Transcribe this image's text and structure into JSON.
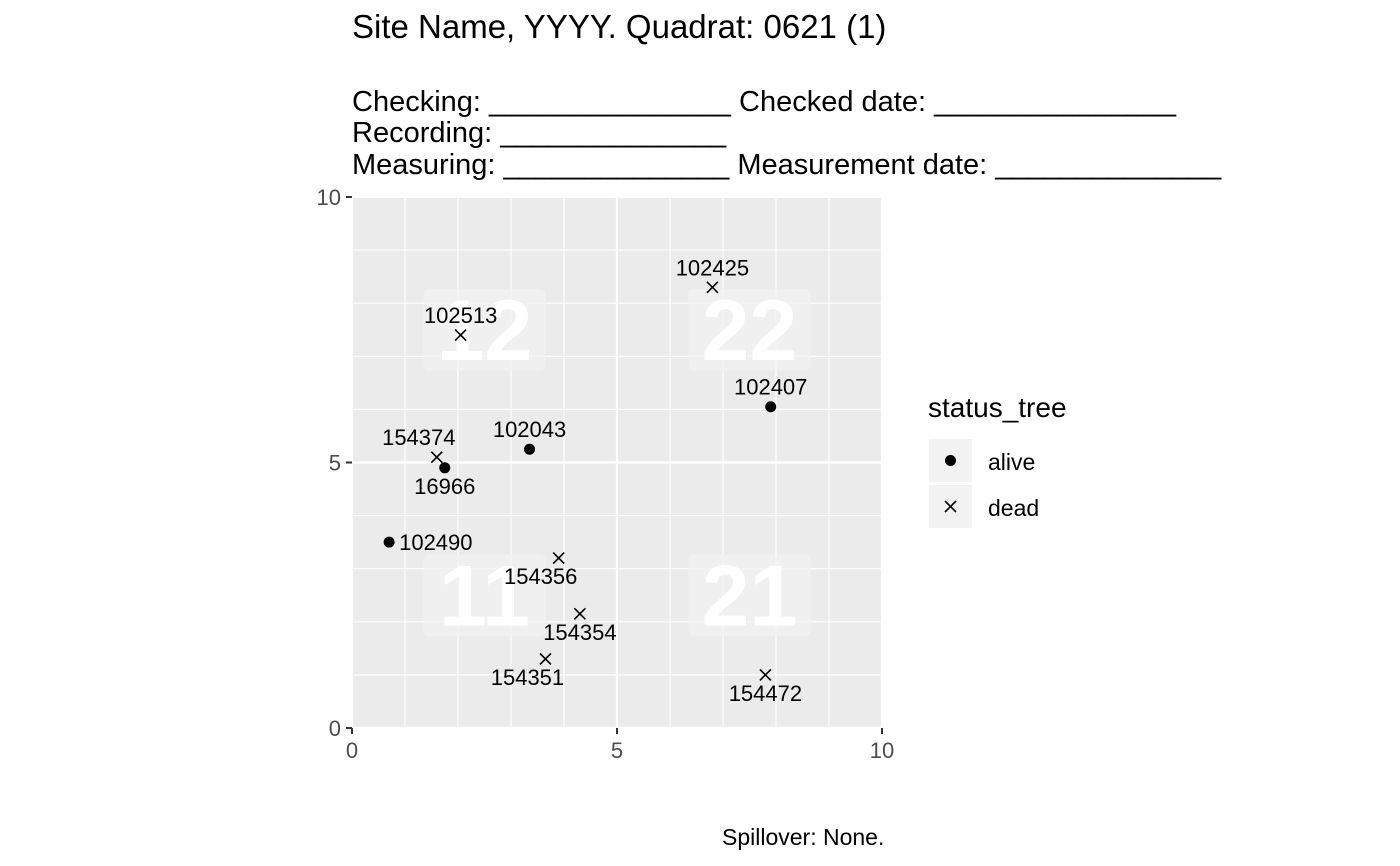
{
  "header": {
    "title": "Site Name, YYYY. Quadrat: 0621 (1)",
    "line1": "Checking: _______________ Checked date: _______________",
    "line2": "Recording: ______________",
    "line3": "Measuring: ______________ Measurement date: ______________"
  },
  "caption": "Spillover: None.",
  "legend": {
    "title": "status_tree",
    "items": [
      {
        "label": "alive",
        "shape": "circle"
      },
      {
        "label": "dead",
        "shape": "cross"
      }
    ]
  },
  "colors": {
    "panel": "#ebebeb",
    "grid": "#ffffff",
    "label_box": "#f2f2f2",
    "point": "#000000",
    "axis_text": "#4d4d4d"
  },
  "chart_data": {
    "type": "scatter",
    "xlim": [
      0,
      10
    ],
    "ylim": [
      0,
      10
    ],
    "x_ticks": [
      0,
      5,
      10
    ],
    "y_ticks": [
      0,
      5,
      10
    ],
    "grid": true,
    "legend_position": "right",
    "quadrant_labels": [
      {
        "label": "12",
        "x": 2.5,
        "y": 7.5
      },
      {
        "label": "22",
        "x": 7.5,
        "y": 7.5
      },
      {
        "label": "11",
        "x": 2.5,
        "y": 2.5
      },
      {
        "label": "21",
        "x": 7.5,
        "y": 2.5
      }
    ],
    "points": [
      {
        "tag": "102425",
        "x": 6.8,
        "y": 8.3,
        "status": "dead",
        "label_side": "above"
      },
      {
        "tag": "102513",
        "x": 2.05,
        "y": 7.4,
        "status": "dead",
        "label_side": "above"
      },
      {
        "tag": "102407",
        "x": 7.9,
        "y": 6.05,
        "status": "alive",
        "label_side": "above"
      },
      {
        "tag": "102043",
        "x": 3.35,
        "y": 5.25,
        "status": "alive",
        "label_side": "above"
      },
      {
        "tag": "154374",
        "x": 1.6,
        "y": 5.1,
        "status": "dead",
        "label_side": "above-left"
      },
      {
        "tag": "16966",
        "x": 1.75,
        "y": 4.9,
        "status": "alive",
        "label_side": "below"
      },
      {
        "tag": "102490",
        "x": 0.7,
        "y": 3.5,
        "status": "alive",
        "label_side": "right"
      },
      {
        "tag": "154356",
        "x": 3.9,
        "y": 3.2,
        "status": "dead",
        "label_side": "below-left"
      },
      {
        "tag": "154354",
        "x": 4.3,
        "y": 2.15,
        "status": "dead",
        "label_side": "below"
      },
      {
        "tag": "154351",
        "x": 3.65,
        "y": 1.3,
        "status": "dead",
        "label_side": "below-left"
      },
      {
        "tag": "154472",
        "x": 7.8,
        "y": 1.0,
        "status": "dead",
        "label_side": "below"
      }
    ]
  }
}
